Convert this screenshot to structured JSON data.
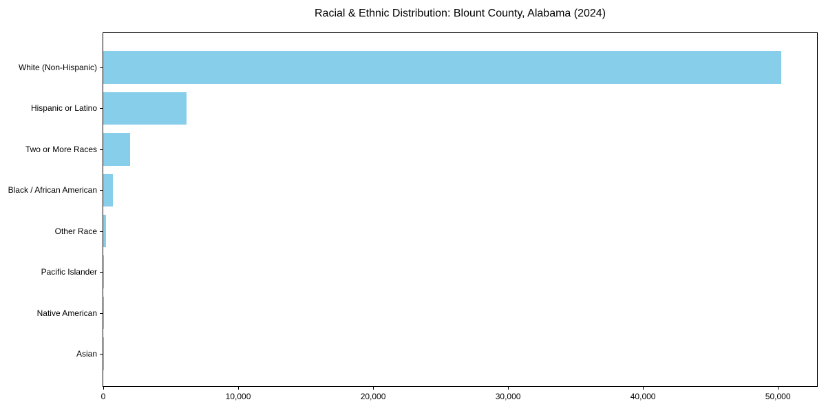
{
  "chart_data": {
    "type": "bar",
    "orientation": "horizontal",
    "title": "Racial & Ethnic Distribution: Blount County, Alabama (2024)",
    "categories": [
      "White (Non-Hispanic)",
      "Hispanic or Latino",
      "Two or More Races",
      "Black / African American",
      "Other Race",
      "Pacific Islander",
      "Native American",
      "Asian"
    ],
    "values": [
      50270,
      6160,
      2000,
      730,
      220,
      50,
      35,
      20
    ],
    "xlabel": "",
    "ylabel": "",
    "xlim": [
      0,
      52900
    ],
    "xticks": [
      {
        "value": 0,
        "label": "0"
      },
      {
        "value": 10000,
        "label": "10,000"
      },
      {
        "value": 20000,
        "label": "20,000"
      },
      {
        "value": 30000,
        "label": "30,000"
      },
      {
        "value": 40000,
        "label": "40,000"
      },
      {
        "value": 50000,
        "label": "50,000"
      }
    ],
    "bar_color": "#87CEEB",
    "grid": false,
    "legend": "none",
    "plot_border": "#000000"
  }
}
